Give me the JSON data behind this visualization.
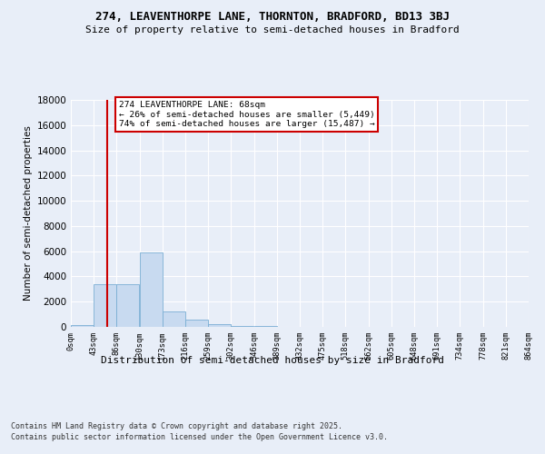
{
  "title_line1": "274, LEAVENTHORPE LANE, THORNTON, BRADFORD, BD13 3BJ",
  "title_line2": "Size of property relative to semi-detached houses in Bradford",
  "xlabel": "Distribution of semi-detached houses by size in Bradford",
  "ylabel": "Number of semi-detached properties",
  "footer_line1": "Contains HM Land Registry data © Crown copyright and database right 2025.",
  "footer_line2": "Contains public sector information licensed under the Open Government Licence v3.0.",
  "annotation_line1": "274 LEAVENTHORPE LANE: 68sqm",
  "annotation_line2": "← 26% of semi-detached houses are smaller (5,449)",
  "annotation_line3": "74% of semi-detached houses are larger (15,487) →",
  "bin_edges": [
    0,
    43,
    86,
    130,
    173,
    216,
    259,
    302,
    346,
    389,
    432,
    475,
    518,
    562,
    605,
    648,
    691,
    734,
    778,
    821,
    864
  ],
  "bin_labels": [
    "0sqm",
    "43sqm",
    "86sqm",
    "130sqm",
    "173sqm",
    "216sqm",
    "259sqm",
    "302sqm",
    "346sqm",
    "389sqm",
    "432sqm",
    "475sqm",
    "518sqm",
    "562sqm",
    "605sqm",
    "648sqm",
    "691sqm",
    "734sqm",
    "778sqm",
    "821sqm",
    "864sqm"
  ],
  "bar_values": [
    150,
    3400,
    3400,
    5900,
    1200,
    600,
    200,
    100,
    50,
    10,
    2,
    1,
    0,
    0,
    0,
    0,
    0,
    0,
    0,
    0
  ],
  "bar_color": "#c8daf0",
  "bar_edge_color": "#7aaed4",
  "vline_x": 68,
  "vline_color": "#cc0000",
  "annotation_box_color": "#cc0000",
  "ylim": [
    0,
    18000
  ],
  "yticks": [
    0,
    2000,
    4000,
    6000,
    8000,
    10000,
    12000,
    14000,
    16000,
    18000
  ],
  "bg_color": "#e8eef8",
  "plot_bg_color": "#e8eef8",
  "grid_color": "#ffffff"
}
